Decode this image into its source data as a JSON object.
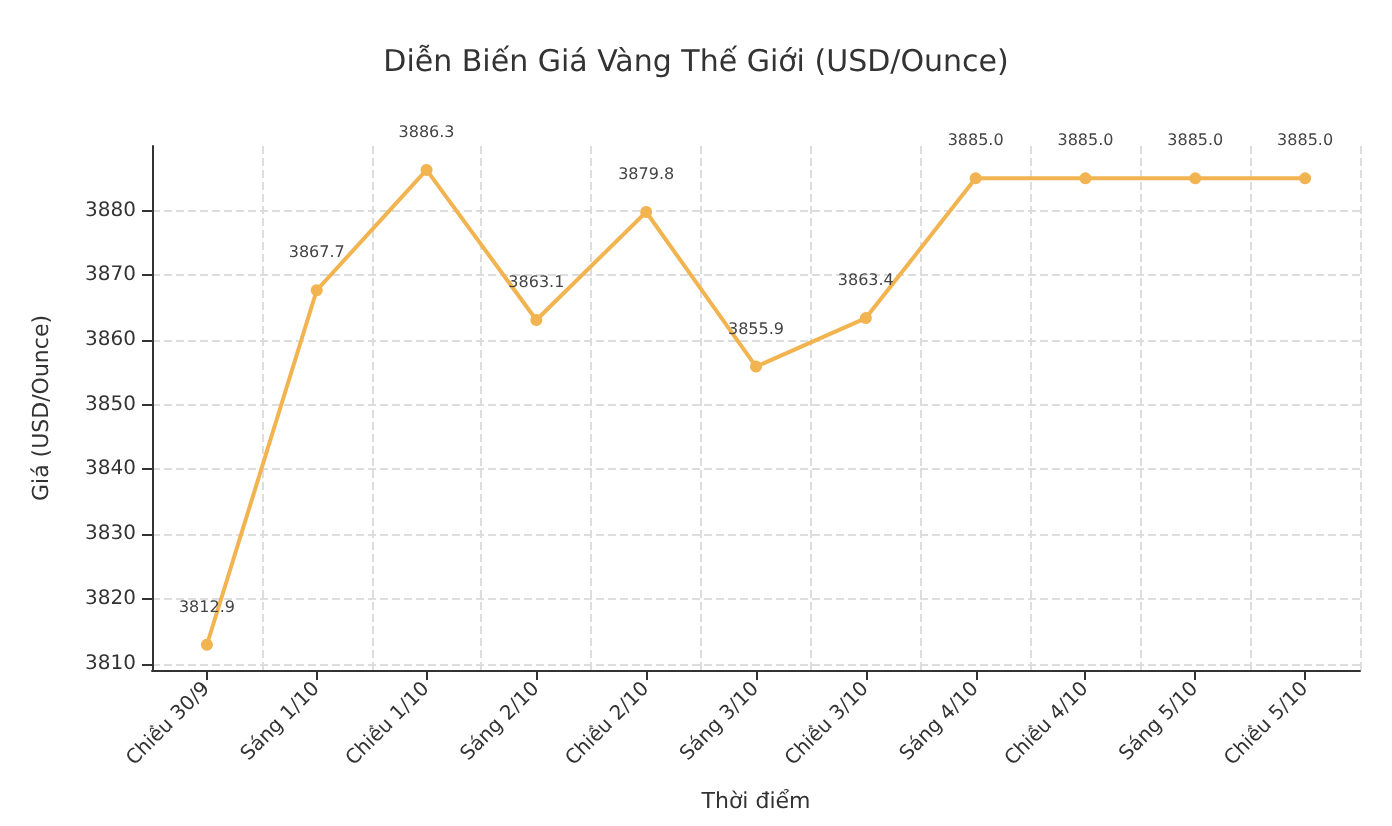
{
  "chart_data": {
    "type": "line",
    "title": "Diễn Biến Giá Vàng Thế Giới (USD/Ounce)",
    "xlabel": "Thời điểm",
    "ylabel": "Giá (USD/Ounce)",
    "categories": [
      "Chiều 30/9",
      "Sáng 1/10",
      "Chiều 1/10",
      "Sáng 2/10",
      "Chiều 2/10",
      "Sáng 3/10",
      "Chiều 3/10",
      "Sáng 4/10",
      "Chiều 4/10",
      "Sáng 5/10",
      "Chiều 5/10"
    ],
    "series": [
      {
        "color": "#f2b451",
        "values": [
          3812.9,
          3867.7,
          3886.3,
          3863.1,
          3879.8,
          3855.9,
          3863.4,
          3885.0,
          3885.0,
          3885.0,
          3885.0
        ],
        "value_labels": [
          "3812.9",
          "3867.7",
          "3886.3",
          "3863.1",
          "3879.8",
          "3855.9",
          "3863.4",
          "3885.0",
          "3885.0",
          "3885.0",
          "3885.0"
        ]
      }
    ],
    "ylim": [
      3809,
      3890
    ],
    "yticks": [
      3810,
      3820,
      3830,
      3840,
      3850,
      3860,
      3870,
      3880
    ],
    "grid": true,
    "marker": "circle",
    "line_style": "solid"
  }
}
